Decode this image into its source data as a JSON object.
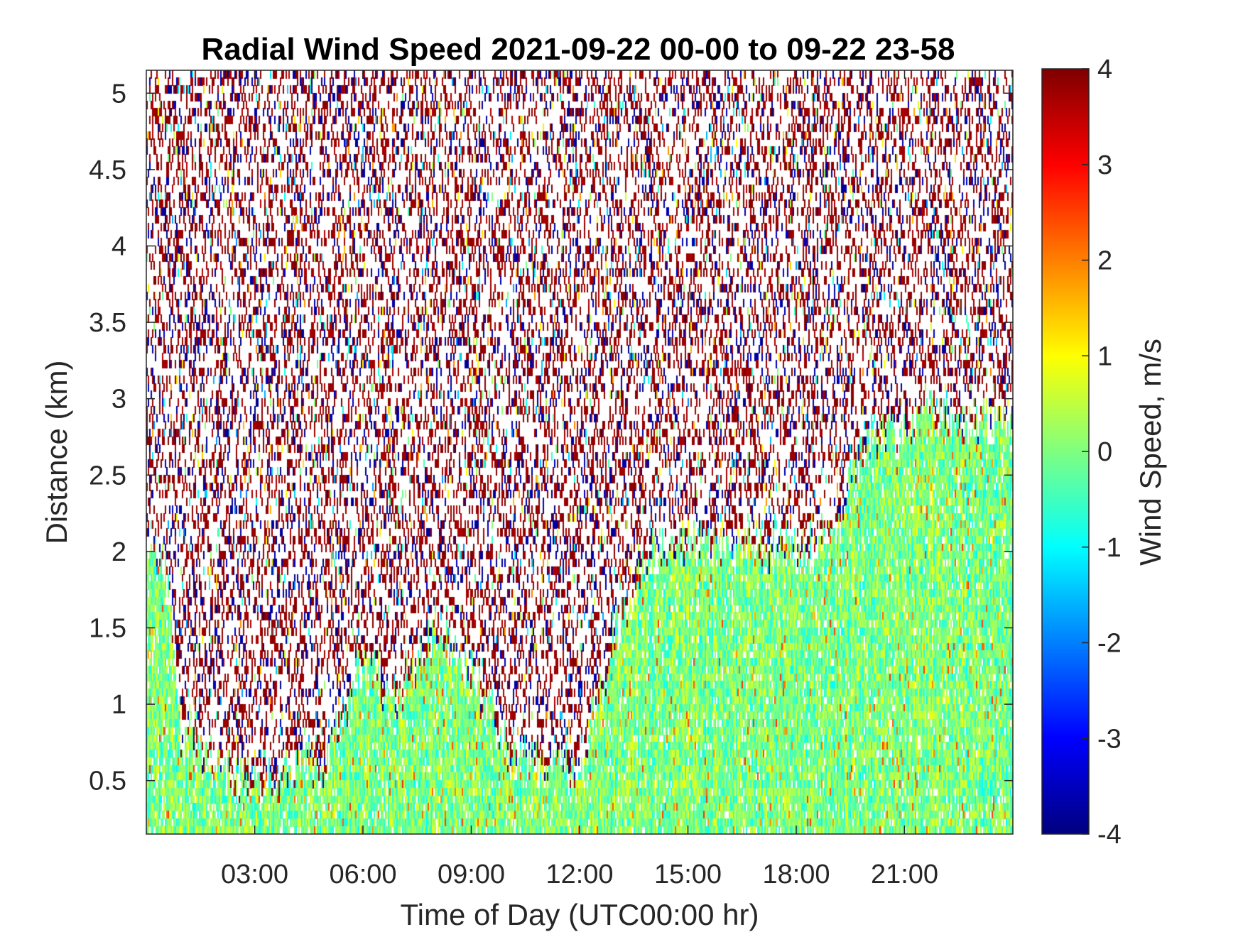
{
  "chart_data": {
    "type": "heatmap",
    "title": "Radial Wind Speed 2021-09-22 00-00 to 09-22 23-58",
    "xlabel": "Time of Day (UTC00:00 hr)",
    "ylabel": "Distance (km)",
    "colorbar_label": "Wind Speed, m/s",
    "colormap": "jet",
    "xlim": [
      0,
      24
    ],
    "ylim": [
      0.15,
      5.15
    ],
    "clim": [
      -4,
      4
    ],
    "x_ticks": [
      {
        "value": 3,
        "label": "03:00"
      },
      {
        "value": 6,
        "label": "06:00"
      },
      {
        "value": 9,
        "label": "09:00"
      },
      {
        "value": 12,
        "label": "12:00"
      },
      {
        "value": 15,
        "label": "15:00"
      },
      {
        "value": 18,
        "label": "18:00"
      },
      {
        "value": 21,
        "label": "21:00"
      }
    ],
    "y_ticks": [
      {
        "value": 0.5,
        "label": "0.5"
      },
      {
        "value": 1,
        "label": "1"
      },
      {
        "value": 1.5,
        "label": "1.5"
      },
      {
        "value": 2,
        "label": "2"
      },
      {
        "value": 2.5,
        "label": "2.5"
      },
      {
        "value": 3,
        "label": "3"
      },
      {
        "value": 3.5,
        "label": "3.5"
      },
      {
        "value": 4,
        "label": "4"
      },
      {
        "value": 4.5,
        "label": "4.5"
      },
      {
        "value": 5,
        "label": "5"
      }
    ],
    "colorbar_ticks": [
      {
        "value": 4,
        "label": "4"
      },
      {
        "value": 3,
        "label": "3"
      },
      {
        "value": 2,
        "label": "2"
      },
      {
        "value": 1,
        "label": "1"
      },
      {
        "value": 0,
        "label": "0"
      },
      {
        "value": -1,
        "label": "-1"
      },
      {
        "value": -2,
        "label": "-2"
      },
      {
        "value": -3,
        "label": "-3"
      },
      {
        "value": -4,
        "label": "-4"
      }
    ],
    "valid_data_top_km": [
      {
        "time": 0.0,
        "top": 1.95
      },
      {
        "time": 0.5,
        "top": 1.95
      },
      {
        "time": 1.0,
        "top": 0.75
      },
      {
        "time": 2.0,
        "top": 0.55
      },
      {
        "time": 3.0,
        "top": 0.45
      },
      {
        "time": 4.0,
        "top": 0.55
      },
      {
        "time": 5.0,
        "top": 0.6
      },
      {
        "time": 6.0,
        "top": 1.3
      },
      {
        "time": 7.0,
        "top": 1.0
      },
      {
        "time": 8.0,
        "top": 1.5
      },
      {
        "time": 9.0,
        "top": 1.2
      },
      {
        "time": 10.0,
        "top": 0.7
      },
      {
        "time": 11.0,
        "top": 0.6
      },
      {
        "time": 12.0,
        "top": 0.55
      },
      {
        "time": 13.0,
        "top": 1.5
      },
      {
        "time": 14.0,
        "top": 2.0
      },
      {
        "time": 15.0,
        "top": 2.05
      },
      {
        "time": 16.0,
        "top": 2.0
      },
      {
        "time": 17.0,
        "top": 2.05
      },
      {
        "time": 18.0,
        "top": 2.0
      },
      {
        "time": 19.0,
        "top": 2.1
      },
      {
        "time": 20.0,
        "top": 2.75
      },
      {
        "time": 21.0,
        "top": 2.75
      },
      {
        "time": 22.0,
        "top": 2.9
      },
      {
        "time": 23.0,
        "top": 2.85
      },
      {
        "time": 24.0,
        "top": 2.85
      }
    ],
    "typical_values": {
      "valid_region": 0.0,
      "valid_region_range": [
        -1.5,
        1.0
      ],
      "noise_region_range": [
        -4,
        4
      ]
    }
  }
}
